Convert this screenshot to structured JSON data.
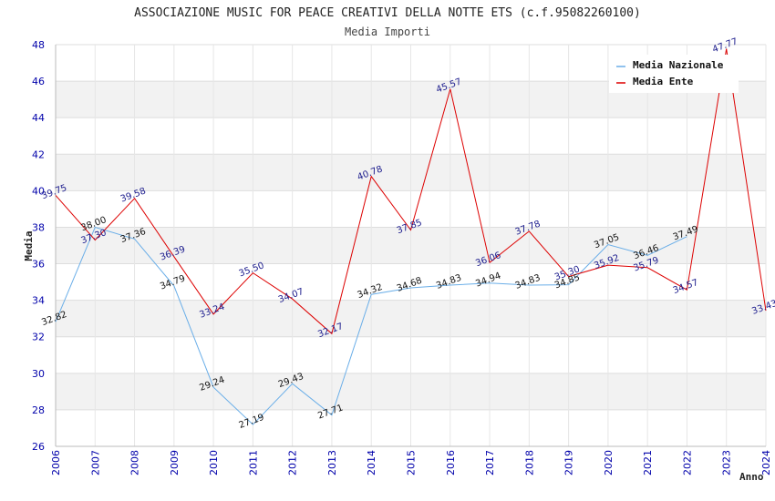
{
  "chart_data": {
    "type": "line",
    "title": "ASSOCIAZIONE MUSIC FOR PEACE CREATIVI DELLA NOTTE ETS (c.f.95082260100)",
    "subtitle": "Media Importi",
    "xlabel": "Anno",
    "ylabel": "Media",
    "ylim": [
      26,
      48
    ],
    "yticks": [
      "26",
      "28",
      "30",
      "32",
      "34",
      "36",
      "38",
      "40",
      "42",
      "44",
      "46",
      "48"
    ],
    "x": [
      "2006",
      "2007",
      "2008",
      "2009",
      "2010",
      "2011",
      "2012",
      "2013",
      "2014",
      "2015",
      "2016",
      "2017",
      "2018",
      "2019",
      "2020",
      "2021",
      "2022",
      "2023",
      "2024"
    ],
    "grid": true,
    "legend_position": "top-right",
    "series": [
      {
        "name": "Media Nazionale",
        "color": "#6aaee8",
        "values": [
          32.82,
          38.0,
          37.36,
          34.79,
          29.24,
          27.19,
          29.43,
          27.71,
          34.32,
          34.68,
          34.83,
          34.94,
          34.83,
          34.85,
          37.05,
          36.46,
          37.49,
          null,
          null
        ],
        "labels": [
          "32.82",
          "38.00",
          "37.36",
          "34.79",
          "29.24",
          "27.19",
          "29.43",
          "27.71",
          "34.32",
          "34.68",
          "34.83",
          "34.94",
          "34.83",
          "34.85",
          "37.05",
          "36.46",
          "37.49",
          null,
          null
        ]
      },
      {
        "name": "Media Ente",
        "color": "#dd0000",
        "values": [
          39.75,
          37.3,
          39.58,
          36.39,
          33.24,
          35.5,
          34.07,
          32.17,
          40.78,
          37.85,
          45.57,
          36.06,
          37.78,
          35.3,
          35.92,
          35.79,
          34.57,
          47.77,
          33.43
        ],
        "labels": [
          "39.75",
          "37.30",
          "39.58",
          "36.39",
          "33.24",
          "35.50",
          "34.07",
          "32.17",
          "40.78",
          "37.85",
          "45.57",
          "36.06",
          "37.78",
          "35.30",
          "35.92",
          "35.79",
          "34.57",
          "47.77",
          "33.43"
        ]
      }
    ]
  }
}
